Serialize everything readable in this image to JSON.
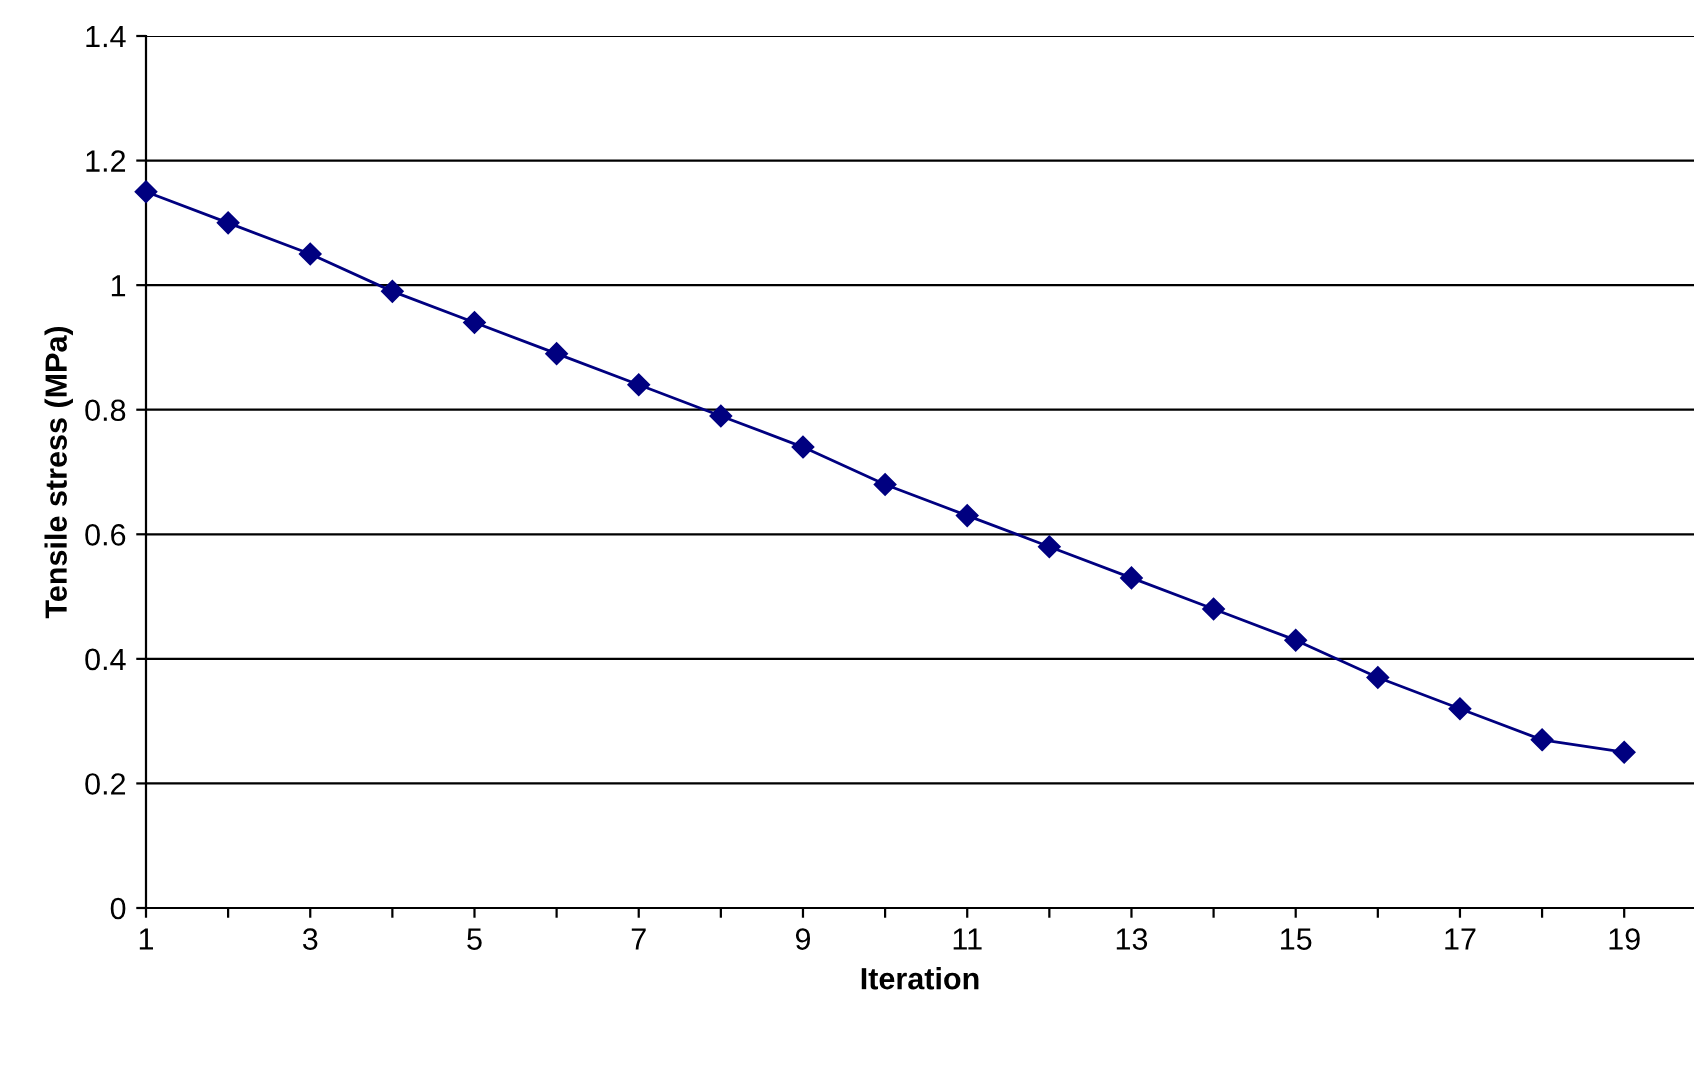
{
  "chart_data": {
    "type": "line",
    "xlabel": "Iteration",
    "ylabel": "Tensile stress (MPa)",
    "x": [
      1,
      2,
      3,
      4,
      5,
      6,
      7,
      8,
      9,
      10,
      11,
      12,
      13,
      14,
      15,
      16,
      17,
      18,
      19
    ],
    "series": [
      {
        "color": "#000080",
        "values": [
          1.15,
          1.1,
          1.05,
          0.99,
          0.94,
          0.89,
          0.84,
          0.79,
          0.74,
          0.68,
          0.63,
          0.58,
          0.53,
          0.48,
          0.43,
          0.37,
          0.32,
          0.27,
          0.25
        ]
      }
    ],
    "xlim": [
      1,
      19.85
    ],
    "xticks": [
      1,
      {
        "value": 2,
        "label": null
      },
      3,
      {
        "value": 4,
        "label": null
      },
      5,
      {
        "value": 6,
        "label": null
      },
      7,
      {
        "value": 8,
        "label": null
      },
      9,
      {
        "value": 10,
        "label": null
      },
      11,
      {
        "value": 12,
        "label": null
      },
      13,
      {
        "value": 14,
        "label": null
      },
      15,
      {
        "value": 16,
        "label": null
      },
      17,
      {
        "value": 18,
        "label": null
      },
      19
    ],
    "ylim": [
      0,
      1.4
    ],
    "yticks": [
      0,
      0.2,
      0.4,
      0.6,
      0.8,
      1,
      1.2,
      1.4
    ],
    "grid": "y",
    "marker": "diamond",
    "line_style": "solid"
  }
}
